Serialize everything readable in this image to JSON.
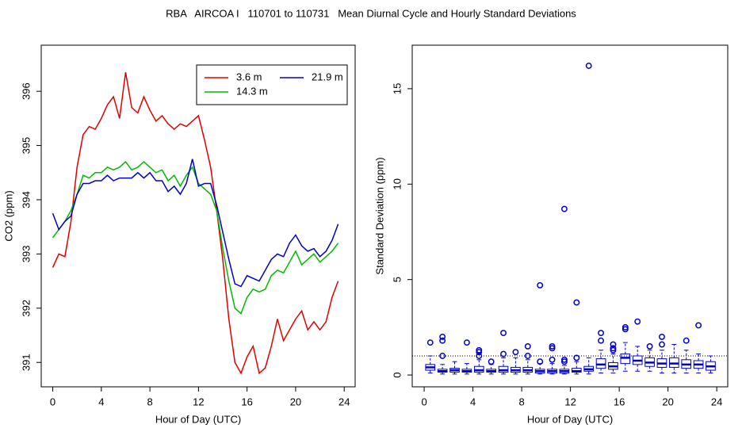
{
  "title": "RBA   AIRCOA I   110701 to 110731   Mean Diurnal Cycle and Hourly Standard Deviations",
  "chart_data": [
    {
      "type": "line",
      "xlabel": "Hour of Day (UTC)",
      "ylabel": "CO2 (ppm)",
      "xlim": [
        -0.95,
        24.9
      ],
      "ylim": [
        390.55,
        396.85
      ],
      "xticks": [
        0,
        4,
        8,
        12,
        16,
        20,
        24
      ],
      "yticks": [
        391,
        392,
        393,
        394,
        395,
        396
      ],
      "legend": "topright",
      "x": [
        0,
        0.5,
        1,
        1.5,
        2,
        2.5,
        3,
        3.5,
        4,
        4.5,
        5,
        5.5,
        6,
        6.5,
        7,
        7.5,
        8,
        8.5,
        9,
        9.5,
        10,
        10.5,
        11,
        11.5,
        12,
        12.5,
        13,
        13.5,
        14,
        14.5,
        15,
        15.5,
        16,
        16.5,
        17,
        17.5,
        18,
        18.5,
        19,
        19.5,
        20,
        20.5,
        21,
        21.5,
        22,
        22.5,
        23,
        23.5
      ],
      "series": [
        {
          "name": "3.6 m",
          "color": "#e00000",
          "values": [
            392.75,
            393.0,
            392.95,
            393.6,
            394.6,
            395.2,
            395.35,
            395.3,
            395.5,
            395.75,
            395.9,
            395.5,
            396.35,
            395.7,
            395.6,
            395.9,
            395.65,
            395.45,
            395.55,
            395.4,
            395.3,
            395.4,
            395.35,
            395.45,
            395.55,
            395.1,
            394.6,
            393.8,
            392.9,
            391.8,
            391.0,
            390.8,
            391.1,
            391.3,
            390.8,
            390.9,
            391.3,
            391.8,
            391.4,
            391.6,
            391.8,
            391.95,
            391.6,
            391.75,
            391.6,
            391.75,
            392.2,
            392.5
          ]
        },
        {
          "name": "14.3 m",
          "color": "#00bb00",
          "values": [
            393.3,
            393.45,
            393.6,
            393.8,
            394.1,
            394.45,
            394.4,
            394.5,
            394.5,
            394.6,
            394.55,
            394.6,
            394.7,
            394.55,
            394.6,
            394.7,
            394.6,
            394.5,
            394.55,
            394.35,
            394.45,
            394.25,
            394.45,
            394.6,
            394.3,
            394.2,
            394.1,
            393.8,
            393.1,
            392.5,
            392.0,
            391.9,
            392.2,
            392.35,
            392.3,
            392.35,
            392.6,
            392.7,
            392.65,
            392.85,
            393.05,
            392.8,
            392.9,
            393.0,
            392.85,
            392.95,
            393.05,
            393.2
          ]
        },
        {
          "name": "21.9 m",
          "color": "#0000cc",
          "values": [
            393.75,
            393.45,
            393.6,
            393.7,
            394.1,
            394.3,
            394.3,
            394.35,
            394.35,
            394.45,
            394.35,
            394.4,
            394.4,
            394.4,
            394.5,
            394.4,
            394.5,
            394.35,
            394.35,
            394.15,
            394.25,
            394.1,
            394.3,
            394.75,
            394.25,
            394.3,
            394.3,
            393.9,
            393.4,
            392.9,
            392.45,
            392.4,
            392.6,
            392.55,
            392.5,
            392.7,
            392.9,
            393.0,
            392.95,
            393.2,
            393.35,
            393.15,
            393.05,
            393.1,
            392.95,
            393.05,
            393.25,
            393.55
          ]
        }
      ]
    },
    {
      "type": "box",
      "xlabel": "Hour of Day (UTC)",
      "ylabel": "Standard Deviation (ppm)",
      "xlim": [
        -0.98,
        24.9
      ],
      "ylim": [
        -0.62,
        17.28
      ],
      "xticks": [
        0,
        4,
        8,
        12,
        16,
        20,
        24
      ],
      "yticks": [
        0,
        5,
        10,
        15
      ],
      "hline": 1,
      "color": "#0000cc",
      "x": [
        0.5,
        1.5,
        2.5,
        3.5,
        4.5,
        5.5,
        6.5,
        7.5,
        8.5,
        9.5,
        10.5,
        11.5,
        12.5,
        13.5,
        14.5,
        15.5,
        16.5,
        17.5,
        18.5,
        19.5,
        20.5,
        21.5,
        22.5,
        23.5
      ],
      "whisker_low": [
        0.1,
        0.05,
        0.05,
        0.05,
        0.05,
        0.05,
        0.05,
        0.05,
        0.05,
        0.05,
        0.05,
        0.05,
        0.05,
        0.05,
        0.1,
        0.1,
        0.2,
        0.2,
        0.2,
        0.1,
        0.1,
        0.1,
        0.1,
        0.1
      ],
      "q1": [
        0.25,
        0.15,
        0.15,
        0.15,
        0.15,
        0.15,
        0.15,
        0.15,
        0.15,
        0.1,
        0.1,
        0.1,
        0.15,
        0.2,
        0.35,
        0.3,
        0.6,
        0.55,
        0.45,
        0.4,
        0.4,
        0.35,
        0.35,
        0.25
      ],
      "median": [
        0.4,
        0.2,
        0.25,
        0.2,
        0.25,
        0.2,
        0.25,
        0.25,
        0.25,
        0.2,
        0.2,
        0.2,
        0.2,
        0.3,
        0.55,
        0.45,
        0.9,
        0.75,
        0.65,
        0.6,
        0.6,
        0.55,
        0.55,
        0.45
      ],
      "q3": [
        0.55,
        0.3,
        0.35,
        0.3,
        0.45,
        0.3,
        0.45,
        0.4,
        0.4,
        0.3,
        0.3,
        0.3,
        0.35,
        0.45,
        0.85,
        0.65,
        1.1,
        1.0,
        0.9,
        0.85,
        0.9,
        0.8,
        0.75,
        0.7
      ],
      "whisker_high": [
        1.0,
        0.55,
        0.7,
        0.6,
        0.8,
        0.55,
        0.9,
        0.9,
        0.8,
        0.6,
        0.6,
        0.5,
        0.7,
        0.9,
        1.3,
        1.1,
        1.7,
        1.5,
        1.3,
        1.3,
        1.6,
        1.3,
        1.1,
        1.0
      ],
      "outliers": [
        [
          1.7
        ],
        [
          1.0,
          1.8,
          2.0
        ],
        [],
        [
          1.7
        ],
        [
          1.0,
          1.2,
          1.3
        ],
        [
          0.7
        ],
        [
          1.1,
          2.2
        ],
        [
          1.2
        ],
        [
          1.0,
          1.5
        ],
        [
          0.7,
          4.7
        ],
        [
          0.8,
          1.4,
          1.5
        ],
        [
          0.7,
          0.8,
          8.7
        ],
        [
          0.9,
          3.8
        ],
        [
          16.2
        ],
        [
          1.8,
          2.2
        ],
        [
          1.3,
          1.4,
          1.6
        ],
        [
          2.4,
          2.5
        ],
        [
          2.8
        ],
        [
          1.5
        ],
        [
          1.6,
          2.0
        ],
        [],
        [
          1.8
        ],
        [
          2.6
        ],
        []
      ]
    }
  ]
}
